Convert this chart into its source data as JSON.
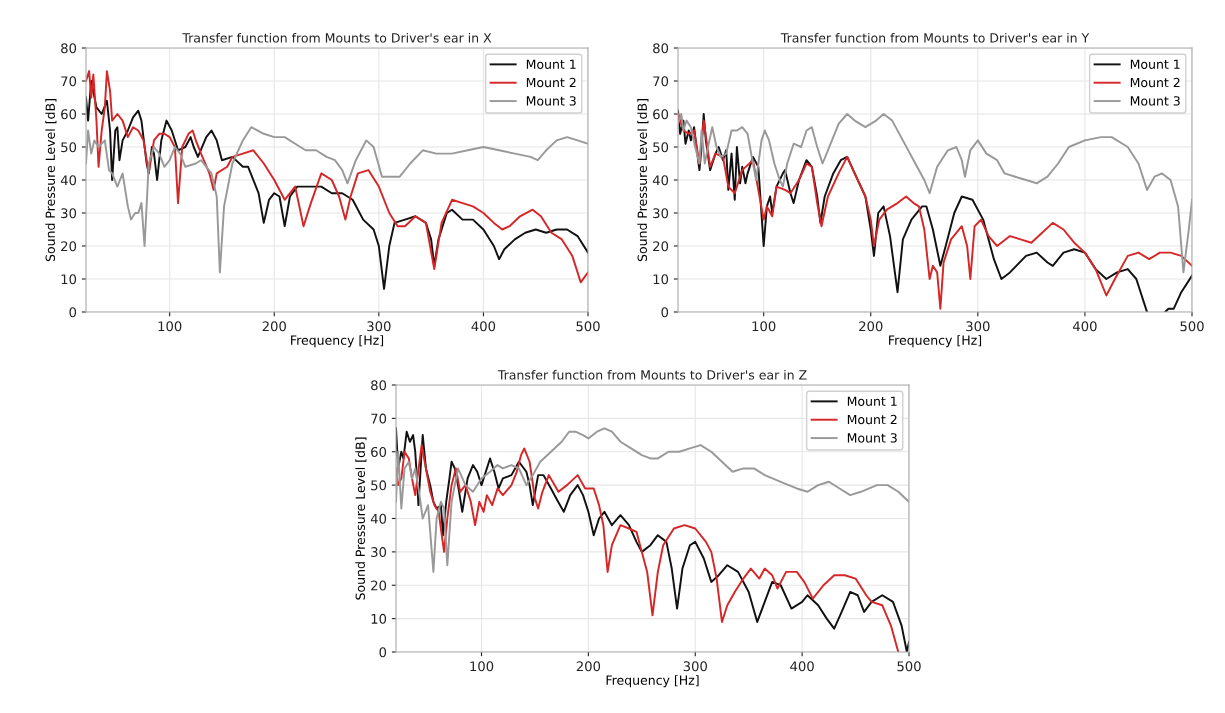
{
  "chart_data": [
    {
      "type": "line",
      "title": "Transfer function from Mounts to Driver's ear in X",
      "xlabel": "Frequency [Hz]",
      "ylabel": "Sound Pressure Level [dB]",
      "xlim": [
        20,
        500
      ],
      "xticks": [
        100,
        200,
        300,
        400,
        500
      ],
      "ylim": [
        0,
        80
      ],
      "yticks": [
        0,
        10,
        20,
        30,
        40,
        50,
        60,
        70,
        80
      ],
      "grid": true,
      "legend": "top right",
      "line_style": "solid",
      "series": [
        {
          "name": "Mount 1",
          "color": "#111111",
          "x": [
            20,
            22,
            25,
            30,
            35,
            40,
            43,
            45,
            48,
            50,
            52,
            55,
            60,
            65,
            70,
            73,
            78,
            80,
            83,
            85,
            88,
            92,
            97,
            102,
            108,
            115,
            120,
            123,
            127,
            135,
            140,
            145,
            150,
            160,
            170,
            175,
            185,
            190,
            195,
            200,
            205,
            210,
            215,
            222,
            235,
            245,
            255,
            265,
            275,
            285,
            295,
            300,
            305,
            310,
            315,
            325,
            335,
            345,
            350,
            353,
            357,
            365,
            370,
            380,
            390,
            400,
            410,
            415,
            420,
            430,
            440,
            450,
            460,
            470,
            480,
            490,
            500
          ],
          "values": [
            65,
            58,
            70,
            62,
            60,
            64,
            55,
            40,
            55,
            56,
            46,
            52,
            55,
            59,
            61,
            58,
            45,
            42,
            50,
            48,
            40,
            52,
            58,
            55,
            49,
            50,
            53,
            50,
            47,
            53,
            55,
            52,
            46,
            47,
            44,
            44,
            36,
            27,
            34,
            36,
            35,
            26,
            35,
            38,
            38,
            38,
            36,
            36,
            34,
            28,
            25,
            20,
            7,
            20,
            27,
            28,
            29,
            27,
            22,
            14,
            22,
            30,
            31,
            28,
            28,
            25,
            20,
            16,
            19,
            22,
            24,
            25,
            24,
            25,
            25,
            23,
            18
          ]
        },
        {
          "name": "Mount 2",
          "color": "#d62728",
          "x": [
            20,
            23,
            25,
            27,
            30,
            32,
            35,
            38,
            40,
            43,
            45,
            50,
            55,
            60,
            65,
            70,
            75,
            80,
            85,
            90,
            95,
            100,
            105,
            108,
            112,
            118,
            122,
            125,
            130,
            138,
            142,
            145,
            155,
            160,
            170,
            180,
            190,
            200,
            210,
            220,
            228,
            235,
            245,
            255,
            262,
            268,
            273,
            280,
            290,
            300,
            310,
            318,
            325,
            335,
            345,
            353,
            360,
            370,
            380,
            390,
            400,
            410,
            418,
            425,
            435,
            447,
            455,
            465,
            475,
            485,
            493,
            500
          ],
          "values": [
            70,
            73,
            65,
            72,
            58,
            44,
            55,
            62,
            73,
            67,
            58,
            60,
            58,
            53,
            56,
            55,
            52,
            42,
            52,
            54,
            54,
            53,
            50,
            33,
            50,
            54,
            55,
            52,
            48,
            42,
            37,
            42,
            44,
            47,
            48,
            49,
            45,
            40,
            34,
            38,
            26,
            33,
            42,
            40,
            35,
            28,
            35,
            42,
            43,
            38,
            30,
            26,
            26,
            29,
            27,
            13,
            27,
            34,
            33,
            32,
            30,
            27,
            25,
            26,
            29,
            31,
            29,
            24,
            22,
            17,
            9,
            12
          ]
        },
        {
          "name": "Mount 3",
          "color": "#999999",
          "x": [
            20,
            22,
            25,
            28,
            32,
            38,
            42,
            45,
            50,
            55,
            60,
            63,
            67,
            70,
            73,
            76,
            80,
            85,
            90,
            95,
            100,
            105,
            110,
            115,
            125,
            130,
            140,
            145,
            148,
            152,
            160,
            170,
            178,
            190,
            200,
            210,
            220,
            230,
            240,
            250,
            258,
            265,
            270,
            278,
            288,
            295,
            303,
            310,
            320,
            330,
            342,
            355,
            370,
            385,
            400,
            415,
            430,
            445,
            452,
            460,
            470,
            480,
            490,
            500
          ],
          "values": [
            45,
            55,
            48,
            52,
            50,
            52,
            43,
            42,
            38,
            42,
            32,
            28,
            30,
            30,
            33,
            20,
            45,
            50,
            48,
            44,
            46,
            50,
            48,
            44,
            45,
            46,
            42,
            35,
            12,
            32,
            45,
            52,
            56,
            54,
            53,
            53,
            51,
            49,
            49,
            47,
            46,
            43,
            39,
            46,
            52,
            50,
            41,
            41,
            41,
            45,
            49,
            48,
            48,
            49,
            50,
            49,
            48,
            47,
            46,
            49,
            52,
            53,
            52,
            51
          ]
        }
      ]
    },
    {
      "type": "line",
      "title": "Transfer function from Mounts to Driver's ear in Y",
      "xlabel": "Frequency [Hz]",
      "ylabel": "Sound Pressure Level [dB]",
      "xlim": [
        20,
        500
      ],
      "xticks": [
        100,
        200,
        300,
        400,
        500
      ],
      "ylim": [
        0,
        80
      ],
      "yticks": [
        0,
        10,
        20,
        30,
        40,
        50,
        60,
        70,
        80
      ],
      "grid": true,
      "legend": "top right",
      "line_style": "solid",
      "series": [
        {
          "name": "Mount 1",
          "color": "#111111",
          "x": [
            20,
            22,
            25,
            27,
            30,
            32,
            35,
            38,
            40,
            42,
            44,
            46,
            50,
            55,
            58,
            62,
            65,
            67,
            70,
            73,
            75,
            78,
            80,
            83,
            85,
            90,
            95,
            100,
            103,
            106,
            108,
            112,
            118,
            120,
            125,
            128,
            133,
            140,
            145,
            150,
            153,
            157,
            165,
            172,
            178,
            185,
            195,
            200,
            203,
            207,
            212,
            218,
            225,
            230,
            238,
            248,
            252,
            258,
            265,
            270,
            278,
            285,
            295,
            305,
            315,
            322,
            330,
            345,
            355,
            365,
            370,
            380,
            390,
            400,
            410,
            420,
            430,
            440,
            448,
            455,
            458,
            465,
            475,
            478,
            483,
            490,
            500
          ],
          "values": [
            61,
            54,
            58,
            51,
            55,
            52,
            56,
            48,
            43,
            50,
            60,
            52,
            43,
            48,
            50,
            46,
            49,
            37,
            48,
            34,
            50,
            39,
            44,
            39,
            42,
            47,
            44,
            20,
            32,
            35,
            30,
            38,
            42,
            43,
            36,
            33,
            40,
            46,
            44,
            35,
            27,
            35,
            42,
            46,
            47,
            42,
            35,
            25,
            17,
            30,
            32,
            23,
            6,
            22,
            28,
            32,
            32,
            25,
            14,
            20,
            30,
            35,
            34,
            28,
            16,
            10,
            12,
            17,
            18,
            15,
            14,
            18,
            19,
            18,
            13,
            10,
            12,
            13,
            10,
            3,
            0,
            null,
            0,
            1,
            1,
            6,
            11
          ]
        },
        {
          "name": "Mount 2",
          "color": "#d62728",
          "x": [
            20,
            25,
            30,
            35,
            40,
            44,
            50,
            55,
            62,
            67,
            73,
            80,
            90,
            100,
            103,
            108,
            112,
            120,
            125,
            133,
            140,
            145,
            150,
            154,
            160,
            170,
            178,
            185,
            195,
            200,
            203,
            208,
            215,
            225,
            233,
            240,
            245,
            250,
            255,
            258,
            262,
            265,
            268,
            275,
            285,
            290,
            293,
            297,
            303,
            310,
            318,
            330,
            340,
            350,
            360,
            370,
            380,
            390,
            400,
            410,
            420,
            428,
            440,
            450,
            460,
            470,
            480,
            490,
            500
          ],
          "values": [
            60,
            55,
            54,
            55,
            45,
            58,
            44,
            48,
            47,
            38,
            36,
            43,
            46,
            28,
            32,
            29,
            38,
            37,
            36,
            40,
            45,
            44,
            33,
            26,
            35,
            42,
            47,
            42,
            35,
            28,
            20,
            28,
            31,
            33,
            35,
            33,
            32,
            25,
            10,
            14,
            12,
            1,
            15,
            22,
            26,
            20,
            10,
            26,
            28,
            23,
            20,
            23,
            22,
            21,
            24,
            27,
            25,
            21,
            18,
            13,
            5,
            10,
            17,
            18,
            16,
            18,
            18,
            17,
            14
          ]
        },
        {
          "name": "Mount 3",
          "color": "#999999",
          "x": [
            20,
            23,
            25,
            28,
            32,
            36,
            40,
            42,
            45,
            48,
            52,
            56,
            60,
            65,
            70,
            75,
            80,
            85,
            90,
            93,
            98,
            101,
            105,
            110,
            115,
            118,
            122,
            128,
            135,
            140,
            145,
            150,
            155,
            160,
            170,
            178,
            185,
            195,
            205,
            212,
            220,
            230,
            240,
            250,
            255,
            262,
            272,
            280,
            285,
            288,
            293,
            300,
            308,
            318,
            325,
            335,
            345,
            355,
            365,
            375,
            385,
            400,
            415,
            425,
            440,
            450,
            458,
            465,
            472,
            480,
            487,
            492,
            497,
            500
          ],
          "values": [
            57,
            60,
            55,
            58,
            56,
            50,
            45,
            55,
            45,
            50,
            56,
            50,
            47,
            48,
            55,
            55,
            56,
            54,
            45,
            40,
            52,
            55,
            52,
            45,
            40,
            38,
            45,
            51,
            50,
            55,
            56,
            50,
            45,
            49,
            57,
            60,
            58,
            56,
            58,
            60,
            58,
            52,
            46,
            40,
            36,
            44,
            49,
            50,
            46,
            41,
            49,
            52,
            48,
            46,
            42,
            41,
            40,
            39,
            41,
            45,
            50,
            52,
            53,
            53,
            50,
            45,
            37,
            41,
            42,
            40,
            32,
            12,
            25,
            34
          ]
        }
      ]
    },
    {
      "type": "line",
      "title": "Transfer function from Mounts to Driver's ear in Z",
      "xlabel": "Frequency [Hz]",
      "ylabel": "Sound Pressure Level [dB]",
      "xlim": [
        20,
        500
      ],
      "xticks": [
        100,
        200,
        300,
        400,
        500
      ],
      "ylim": [
        0,
        80
      ],
      "yticks": [
        0,
        10,
        20,
        30,
        40,
        50,
        60,
        70,
        80
      ],
      "grid": true,
      "legend": "top right",
      "line_style": "solid",
      "series": [
        {
          "name": "Mount 1",
          "color": "#111111",
          "x": [
            20,
            22,
            25,
            27,
            30,
            33,
            36,
            38,
            40,
            41,
            44,
            45,
            48,
            52,
            55,
            58,
            62,
            64,
            67,
            70,
            72,
            75,
            78,
            82,
            87,
            92,
            96,
            100,
            105,
            108,
            112,
            116,
            120,
            128,
            135,
            142,
            145,
            148,
            153,
            158,
            165,
            170,
            177,
            183,
            190,
            195,
            200,
            205,
            210,
            215,
            222,
            230,
            238,
            245,
            250,
            258,
            265,
            273,
            278,
            283,
            288,
            295,
            300,
            308,
            315,
            322,
            330,
            340,
            350,
            358,
            365,
            372,
            380,
            390,
            400,
            405,
            415,
            423,
            430,
            437,
            445,
            452,
            458,
            465,
            475,
            485,
            493,
            498,
            500
          ],
          "values": [
            67,
            55,
            60,
            58,
            66,
            63,
            65,
            60,
            50,
            44,
            60,
            65,
            55,
            50,
            45,
            43,
            44,
            35,
            45,
            52,
            57,
            55,
            50,
            42,
            52,
            56,
            54,
            50,
            55,
            58,
            54,
            49,
            52,
            53,
            57,
            54,
            50,
            44,
            53,
            53,
            49,
            46,
            42,
            47,
            50,
            47,
            42,
            35,
            40,
            42,
            38,
            41,
            38,
            33,
            30,
            32,
            35,
            33,
            25,
            13,
            25,
            32,
            33,
            28,
            21,
            23,
            26,
            24,
            18,
            9,
            15,
            21,
            20,
            13,
            15,
            17,
            14,
            10,
            7,
            12,
            18,
            17,
            12,
            15,
            17,
            15,
            8,
            0,
            3
          ]
        },
        {
          "name": "Mount 2",
          "color": "#d62728",
          "x": [
            20,
            22,
            25,
            28,
            32,
            35,
            38,
            40,
            44,
            48,
            52,
            56,
            60,
            62,
            65,
            68,
            72,
            76,
            80,
            85,
            90,
            94,
            98,
            102,
            105,
            110,
            115,
            120,
            128,
            133,
            137,
            140,
            145,
            150,
            153,
            157,
            163,
            172,
            180,
            190,
            197,
            205,
            210,
            214,
            218,
            222,
            230,
            238,
            245,
            255,
            260,
            265,
            270,
            280,
            290,
            300,
            310,
            315,
            320,
            325,
            330,
            337,
            345,
            352,
            360,
            365,
            372,
            377,
            385,
            395,
            402,
            410,
            420,
            430,
            440,
            450,
            460,
            465,
            475,
            483,
            490
          ],
          "values": [
            55,
            50,
            52,
            60,
            58,
            52,
            47,
            52,
            62,
            55,
            48,
            44,
            42,
            37,
            30,
            40,
            50,
            55,
            48,
            50,
            45,
            38,
            45,
            42,
            47,
            44,
            49,
            47,
            50,
            54,
            59,
            61,
            57,
            46,
            43,
            48,
            53,
            48,
            50,
            53,
            49,
            49,
            44,
            38,
            24,
            32,
            38,
            37,
            36,
            24,
            11,
            24,
            32,
            37,
            38,
            37,
            33,
            30,
            22,
            9,
            14,
            18,
            22,
            25,
            22,
            25,
            23,
            19,
            24,
            24,
            21,
            16,
            20,
            23,
            23,
            22,
            17,
            15,
            14,
            8,
            0
          ]
        },
        {
          "name": "Mount 3",
          "color": "#999999",
          "x": [
            20,
            22,
            25,
            28,
            32,
            35,
            38,
            42,
            45,
            50,
            55,
            58,
            62,
            65,
            68,
            72,
            78,
            85,
            92,
            100,
            108,
            115,
            120,
            128,
            135,
            142,
            148,
            155,
            165,
            175,
            182,
            188,
            195,
            200,
            208,
            215,
            222,
            230,
            240,
            250,
            258,
            265,
            275,
            285,
            295,
            305,
            315,
            325,
            335,
            345,
            355,
            365,
            380,
            395,
            405,
            415,
            425,
            435,
            445,
            455,
            470,
            480,
            490,
            500
          ],
          "values": [
            45,
            60,
            43,
            55,
            57,
            52,
            55,
            47,
            40,
            44,
            24,
            40,
            45,
            43,
            26,
            45,
            55,
            50,
            48,
            52,
            54,
            56,
            55,
            56,
            55,
            50,
            53,
            57,
            60,
            63,
            66,
            66,
            65,
            64,
            66,
            67,
            66,
            63,
            61,
            59,
            58,
            58,
            60,
            60,
            61,
            62,
            60,
            57,
            54,
            55,
            55,
            53,
            51,
            49,
            48,
            50,
            51,
            49,
            47,
            48,
            50,
            50,
            48,
            45
          ]
        }
      ]
    }
  ]
}
